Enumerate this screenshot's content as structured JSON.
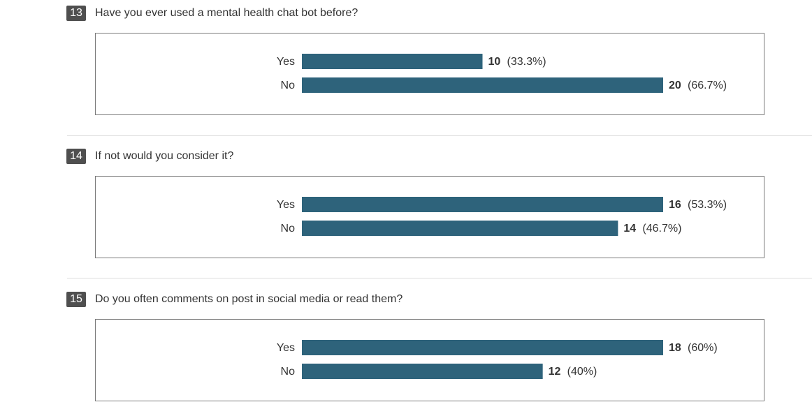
{
  "colors": {
    "bar": "#2e637b",
    "badge": "#4f4f4f",
    "border": "#7a7a7a",
    "divider": "#dddddd"
  },
  "questions": [
    {
      "number": "13",
      "title": "Have you ever used a mental health chat bot before?"
    },
    {
      "number": "14",
      "title": "If not would you consider it?"
    },
    {
      "number": "15",
      "title": "Do you often comments on post in social media or read them?"
    }
  ],
  "chart_data": [
    {
      "type": "bar",
      "orientation": "horizontal",
      "categories": [
        "Yes",
        "No"
      ],
      "values": [
        10,
        20
      ],
      "percent_labels": [
        "(33.3%)",
        "(66.7%)"
      ],
      "xlim": [
        0,
        20
      ]
    },
    {
      "type": "bar",
      "orientation": "horizontal",
      "categories": [
        "Yes",
        "No"
      ],
      "values": [
        16,
        14
      ],
      "percent_labels": [
        "(53.3%)",
        "(46.7%)"
      ],
      "xlim": [
        0,
        16
      ]
    },
    {
      "type": "bar",
      "orientation": "horizontal",
      "categories": [
        "Yes",
        "No"
      ],
      "values": [
        18,
        12
      ],
      "percent_labels": [
        "(60%)",
        "(40%)"
      ],
      "xlim": [
        0,
        18
      ]
    }
  ]
}
